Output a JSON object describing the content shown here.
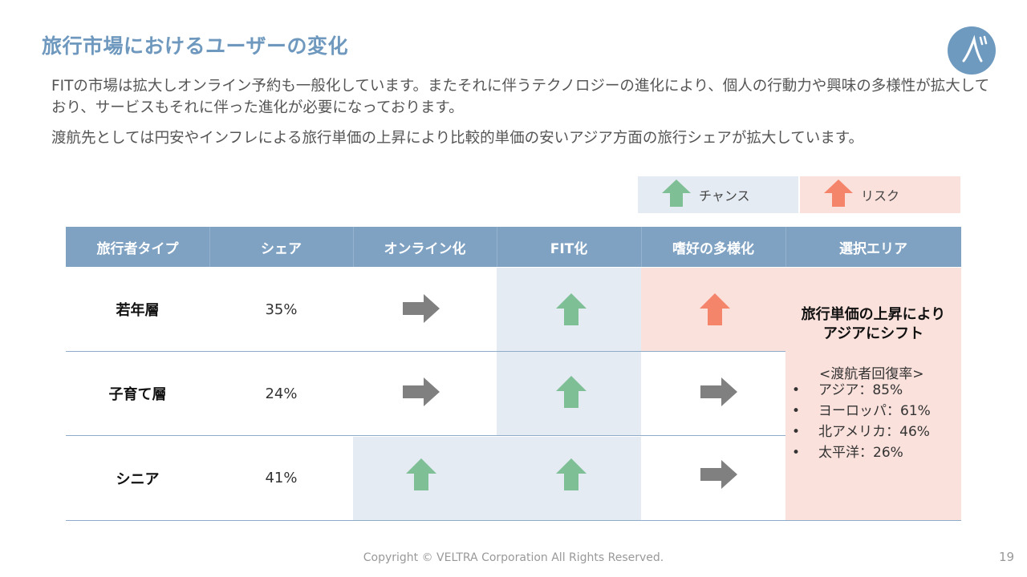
{
  "title": "旅行市場におけるユーザーの変化",
  "paragraphs": [
    "FITの市場は拡大しオンライン予約も一般化しています。またそれに伴うテクノロジーの進化により、個人の行動力や興味の多様性が拡大しており、サービスもそれに伴った進化が必要になっております。",
    "渡航先としては円安やインフレによる旅行単価の上昇により比較的単価の安いアジア方面の旅行シェアが拡大しています。"
  ],
  "legend": {
    "chance": "チャンス",
    "risk": "リスク"
  },
  "colors": {
    "chance_arrow": "#7fbf95",
    "risk_arrow": "#f4846a",
    "neutral_arrow": "#808080",
    "header": "#7fa2c3",
    "chance_bg": "#e4ebf2",
    "risk_bg": "#fbe1dc"
  },
  "table": {
    "headers": [
      "旅行者タイプ",
      "シェア",
      "オンライン化",
      "FIT化",
      "嗜好の多様化",
      "選択エリア"
    ],
    "rows": [
      {
        "type": "若年層",
        "share": "35%",
        "online": "neutral",
        "fit": "chance",
        "diversity": "risk"
      },
      {
        "type": "子育て層",
        "share": "24%",
        "online": "neutral",
        "fit": "chance",
        "diversity": "neutral"
      },
      {
        "type": "シニア",
        "share": "41%",
        "online": "chance",
        "fit": "chance",
        "diversity": "neutral"
      }
    ],
    "area": {
      "title_line1": "旅行単価の上昇により",
      "title_line2": "アジアにシフト",
      "subtitle": "<渡航者回復率>",
      "bullet": "•",
      "items": [
        "アジア：85%",
        "ヨーロッパ：61%",
        "北アメリカ：46%",
        "太平洋：26%"
      ]
    }
  },
  "footer": "Copyright © VELTRA Corporation All Rights Reserved.",
  "page_number": "19"
}
